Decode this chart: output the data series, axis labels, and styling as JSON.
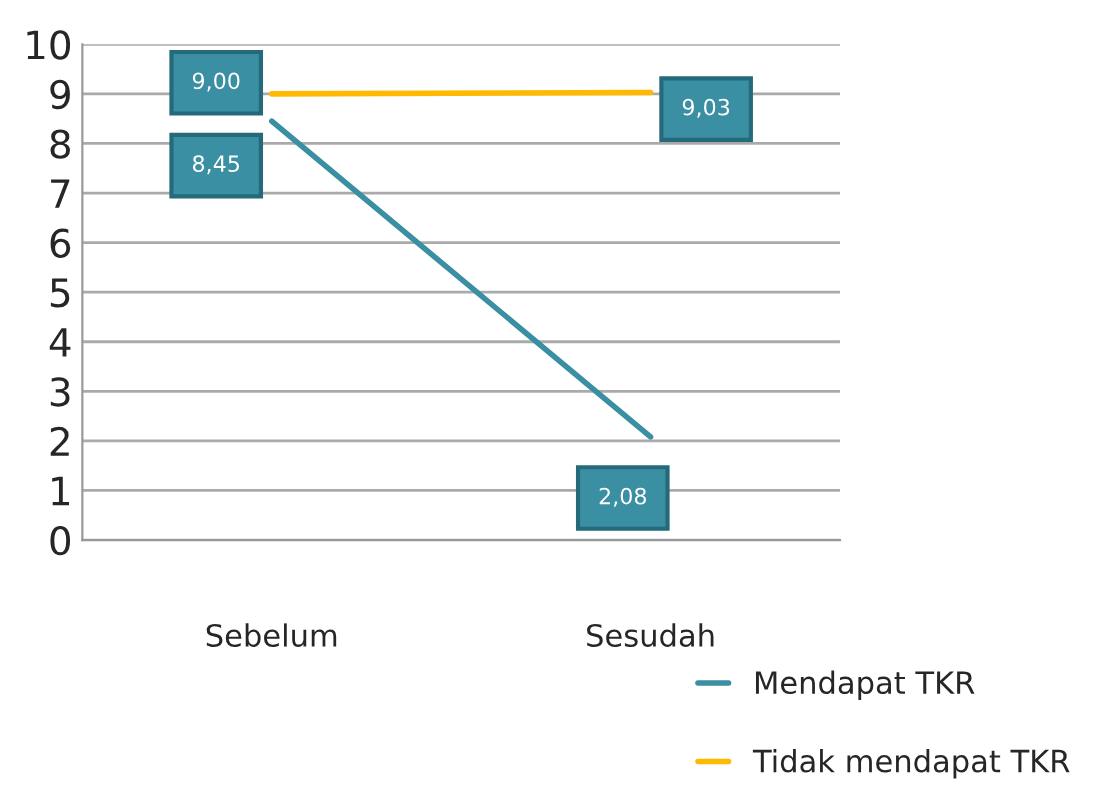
{
  "chart_data": {
    "type": "line",
    "categories": [
      "Sebelum",
      "Sesudah"
    ],
    "series": [
      {
        "name": "Mendapat TKR",
        "color": "#3a8fa3",
        "values": [
          8.45,
          2.08
        ],
        "value_labels": [
          "8,45",
          "2,08"
        ]
      },
      {
        "name": "Tidak mendapat TKR",
        "color": "#ffb900",
        "values": [
          9.0,
          9.03
        ],
        "value_labels": [
          "9,00",
          "9,03"
        ]
      }
    ],
    "ylim": [
      0,
      10
    ],
    "yticks": [
      0,
      1,
      2,
      3,
      4,
      5,
      6,
      7,
      8,
      9,
      10
    ],
    "grid": "y",
    "legend": "bottom right",
    "marker": "none",
    "line_style": "solid"
  }
}
